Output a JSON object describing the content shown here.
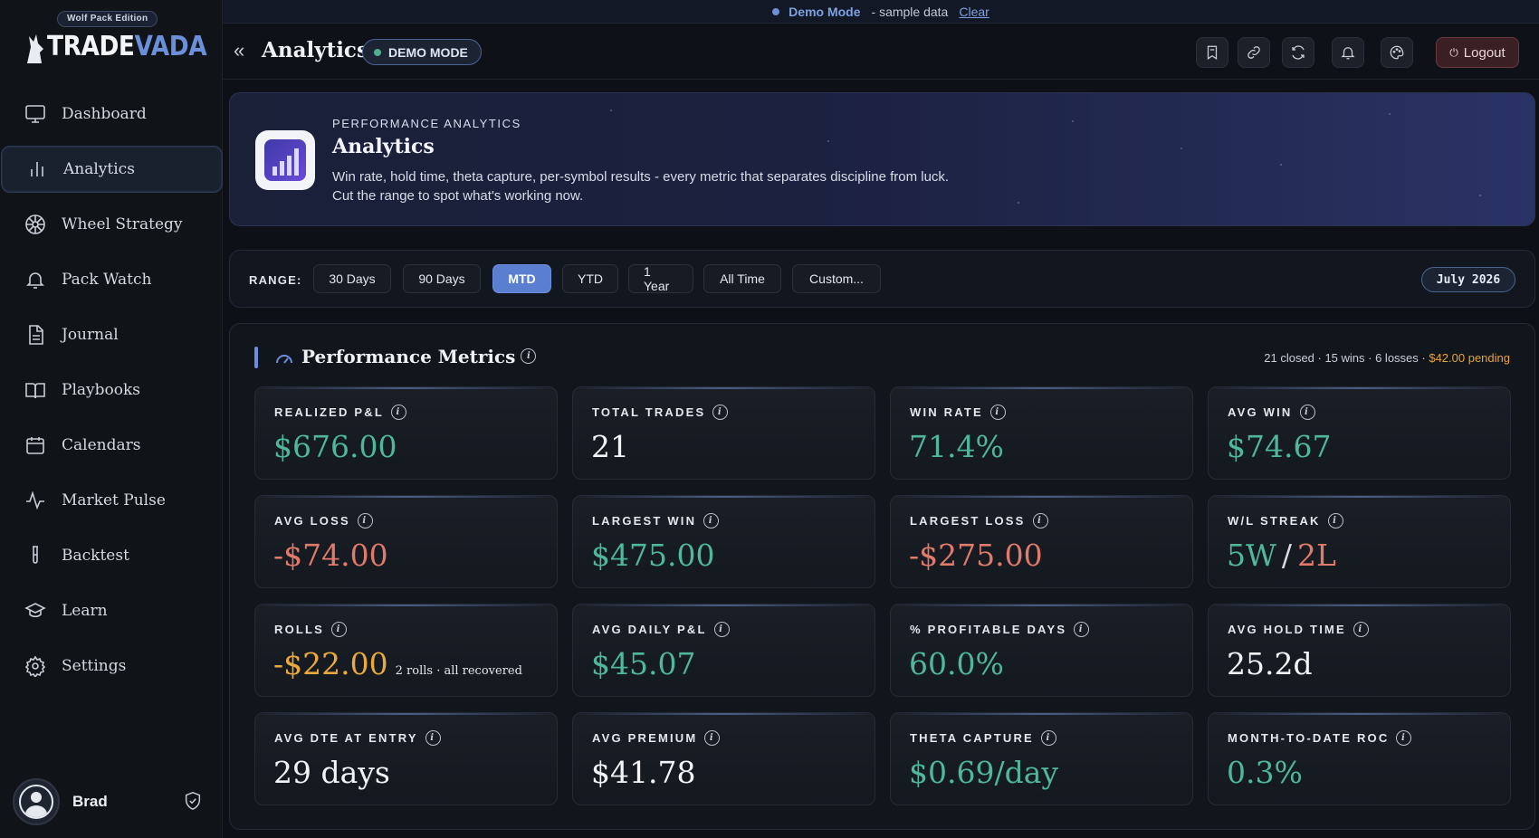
{
  "brand": {
    "edition": "Wolf Pack Edition",
    "name_a": "TRADE",
    "name_b": "VADA"
  },
  "demobar": {
    "mode": "Demo Mode",
    "sample": "- sample data",
    "clear": "Clear"
  },
  "header": {
    "title": "Analytics",
    "badge": "DEMO MODE",
    "logout": "Logout"
  },
  "nav": [
    {
      "label": "Dashboard",
      "icon": "monitor-icon"
    },
    {
      "label": "Analytics",
      "icon": "bar-chart-icon",
      "active": true
    },
    {
      "label": "Wheel Strategy",
      "icon": "wheel-icon"
    },
    {
      "label": "Pack Watch",
      "icon": "bell-icon"
    },
    {
      "label": "Journal",
      "icon": "document-icon"
    },
    {
      "label": "Playbooks",
      "icon": "book-icon"
    },
    {
      "label": "Calendars",
      "icon": "calendar-icon"
    },
    {
      "label": "Market Pulse",
      "icon": "pulse-icon"
    },
    {
      "label": "Backtest",
      "icon": "test-tube-icon"
    },
    {
      "label": "Learn",
      "icon": "graduation-cap-icon"
    },
    {
      "label": "Settings",
      "icon": "gear-icon"
    }
  ],
  "user": {
    "name": "Brad"
  },
  "hero": {
    "eyebrow": "PERFORMANCE ANALYTICS",
    "title": "Analytics",
    "description": "Win rate, hold time, theta capture, per-symbol results - every metric that separates discipline from luck. Cut the range to spot what's working now."
  },
  "range": {
    "label": "RANGE:",
    "options": [
      "30 Days",
      "90 Days",
      "MTD",
      "YTD",
      "1 Year",
      "All Time",
      "Custom..."
    ],
    "selected": "MTD",
    "period": "July 2026"
  },
  "metrics": {
    "title": "Performance Metrics",
    "summary": "21 closed · 15 wins · 6 losses ·",
    "pending": "$42.00 pending",
    "cards": [
      {
        "label": "REALIZED P&L",
        "value": "$676.00",
        "tone": "pos"
      },
      {
        "label": "TOTAL TRADES",
        "value": "21",
        "tone": "neu"
      },
      {
        "label": "WIN RATE",
        "value": "71.4%",
        "tone": "pos"
      },
      {
        "label": "AVG WIN",
        "value": "$74.67",
        "tone": "pos"
      },
      {
        "label": "AVG LOSS",
        "value": "-$74.00",
        "tone": "neg"
      },
      {
        "label": "LARGEST WIN",
        "value": "$475.00",
        "tone": "pos"
      },
      {
        "label": "LARGEST LOSS",
        "value": "-$275.00",
        "tone": "neg"
      },
      {
        "label": "W/L STREAK",
        "value": "5W",
        "value2": "2L",
        "tone": "pos"
      },
      {
        "label": "ROLLS",
        "value": "-$22.00",
        "sub": "2 rolls · all recovered",
        "tone": "warn"
      },
      {
        "label": "AVG DAILY P&L",
        "value": "$45.07",
        "tone": "pos"
      },
      {
        "label": "% PROFITABLE DAYS",
        "value": "60.0%",
        "tone": "pos"
      },
      {
        "label": "AVG HOLD TIME",
        "value": "25.2d",
        "tone": "neu"
      },
      {
        "label": "AVG DTE AT ENTRY",
        "value": "29 days",
        "tone": "neu"
      },
      {
        "label": "AVG PREMIUM",
        "value": "$41.78",
        "tone": "neu"
      },
      {
        "label": "THETA CAPTURE",
        "value": "$0.69/day",
        "tone": "pos"
      },
      {
        "label": "MONTH-TO-DATE ROC",
        "value": "0.3%",
        "tone": "pos"
      }
    ]
  }
}
